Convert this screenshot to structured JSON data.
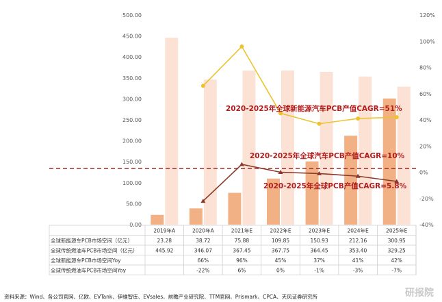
{
  "chart_data": {
    "type": "bar",
    "categories": [
      "2019年A",
      "2020年A",
      "2021年E",
      "2022年E",
      "2023年E",
      "2024年E",
      "2025年E"
    ],
    "series": [
      {
        "name": "全球新能源车PCB市场空间（亿元）",
        "kind": "bar",
        "axis": "left",
        "color": "#f2b185",
        "values": [
          23.28,
          38.72,
          75.88,
          109.85,
          150.93,
          212.16,
          300.95
        ]
      },
      {
        "name": "全球传统燃油车PCB市场空间（亿元）",
        "kind": "bar",
        "axis": "left",
        "color": "#fbe2d4",
        "values": [
          445.92,
          346.07,
          367.45,
          367.75,
          364.45,
          353.4,
          329.25
        ]
      },
      {
        "name": "全球新能源车PCB市场空间Yoy",
        "kind": "line",
        "axis": "right",
        "color": "#ecc32f",
        "values": [
          null,
          66,
          96,
          45,
          37,
          41,
          42
        ]
      },
      {
        "name": "全球传统燃油车PCB市场空间Yoy",
        "kind": "line",
        "axis": "right",
        "color": "#8a3a2c",
        "values": [
          null,
          -22,
          6,
          0,
          -1,
          -3,
          -7
        ]
      }
    ],
    "y_left": {
      "min": 0,
      "max": 500,
      "ticks": [
        "0.00",
        "50.00",
        "100.00",
        "150.00",
        "200.00",
        "250.00",
        "300.00",
        "350.00",
        "400.00",
        "450.00",
        "500.00"
      ]
    },
    "y_right": {
      "min": -40,
      "max": 120,
      "ticks": [
        "-40%",
        "-20%",
        "0%",
        "20%",
        "40%",
        "60%",
        "80%",
        "100%",
        "120%"
      ]
    },
    "annotations": [
      "2020-2025年全球新能源汽车PCB产值CAGR=51%",
      "2020-2025年全球汽车PCB产值CAGR=10%",
      "2020-2025年全球PCB产值CAGR=5.8%"
    ],
    "table": {
      "rows": [
        {
          "label": "全球新能源车PCB市场空间（亿元）",
          "cells": [
            "23.28",
            "38.72",
            "75.88",
            "109.85",
            "150.93",
            "212.16",
            "300.95"
          ]
        },
        {
          "label": "全球传统燃油车PCB市场空间（亿元）",
          "cells": [
            "445.92",
            "346.07",
            "367.45",
            "367.75",
            "364.45",
            "353.40",
            "329.25"
          ]
        },
        {
          "label": "全球新能源车PCB市场空间Yoy",
          "cells": [
            "",
            "66%",
            "96%",
            "45%",
            "37%",
            "41%",
            "42%"
          ]
        },
        {
          "label": "全球传统燃油车PCB市场空间Yoy",
          "cells": [
            "",
            "-22%",
            "6%",
            "0%",
            "-1%",
            "-3%",
            "-7%"
          ]
        }
      ]
    },
    "grid": false,
    "legend": "table-below"
  },
  "source": "资料来源：Wind、各公司官网、亿欧、EVTank、伊维智库、EVsales、前瞻产业研究院、TTM官网、Prismark、CPCA、天风证券研究所",
  "watermark": "研报院",
  "colors": {
    "dashed_line": "#9e2a2a",
    "annotation": "#b21d1d"
  }
}
